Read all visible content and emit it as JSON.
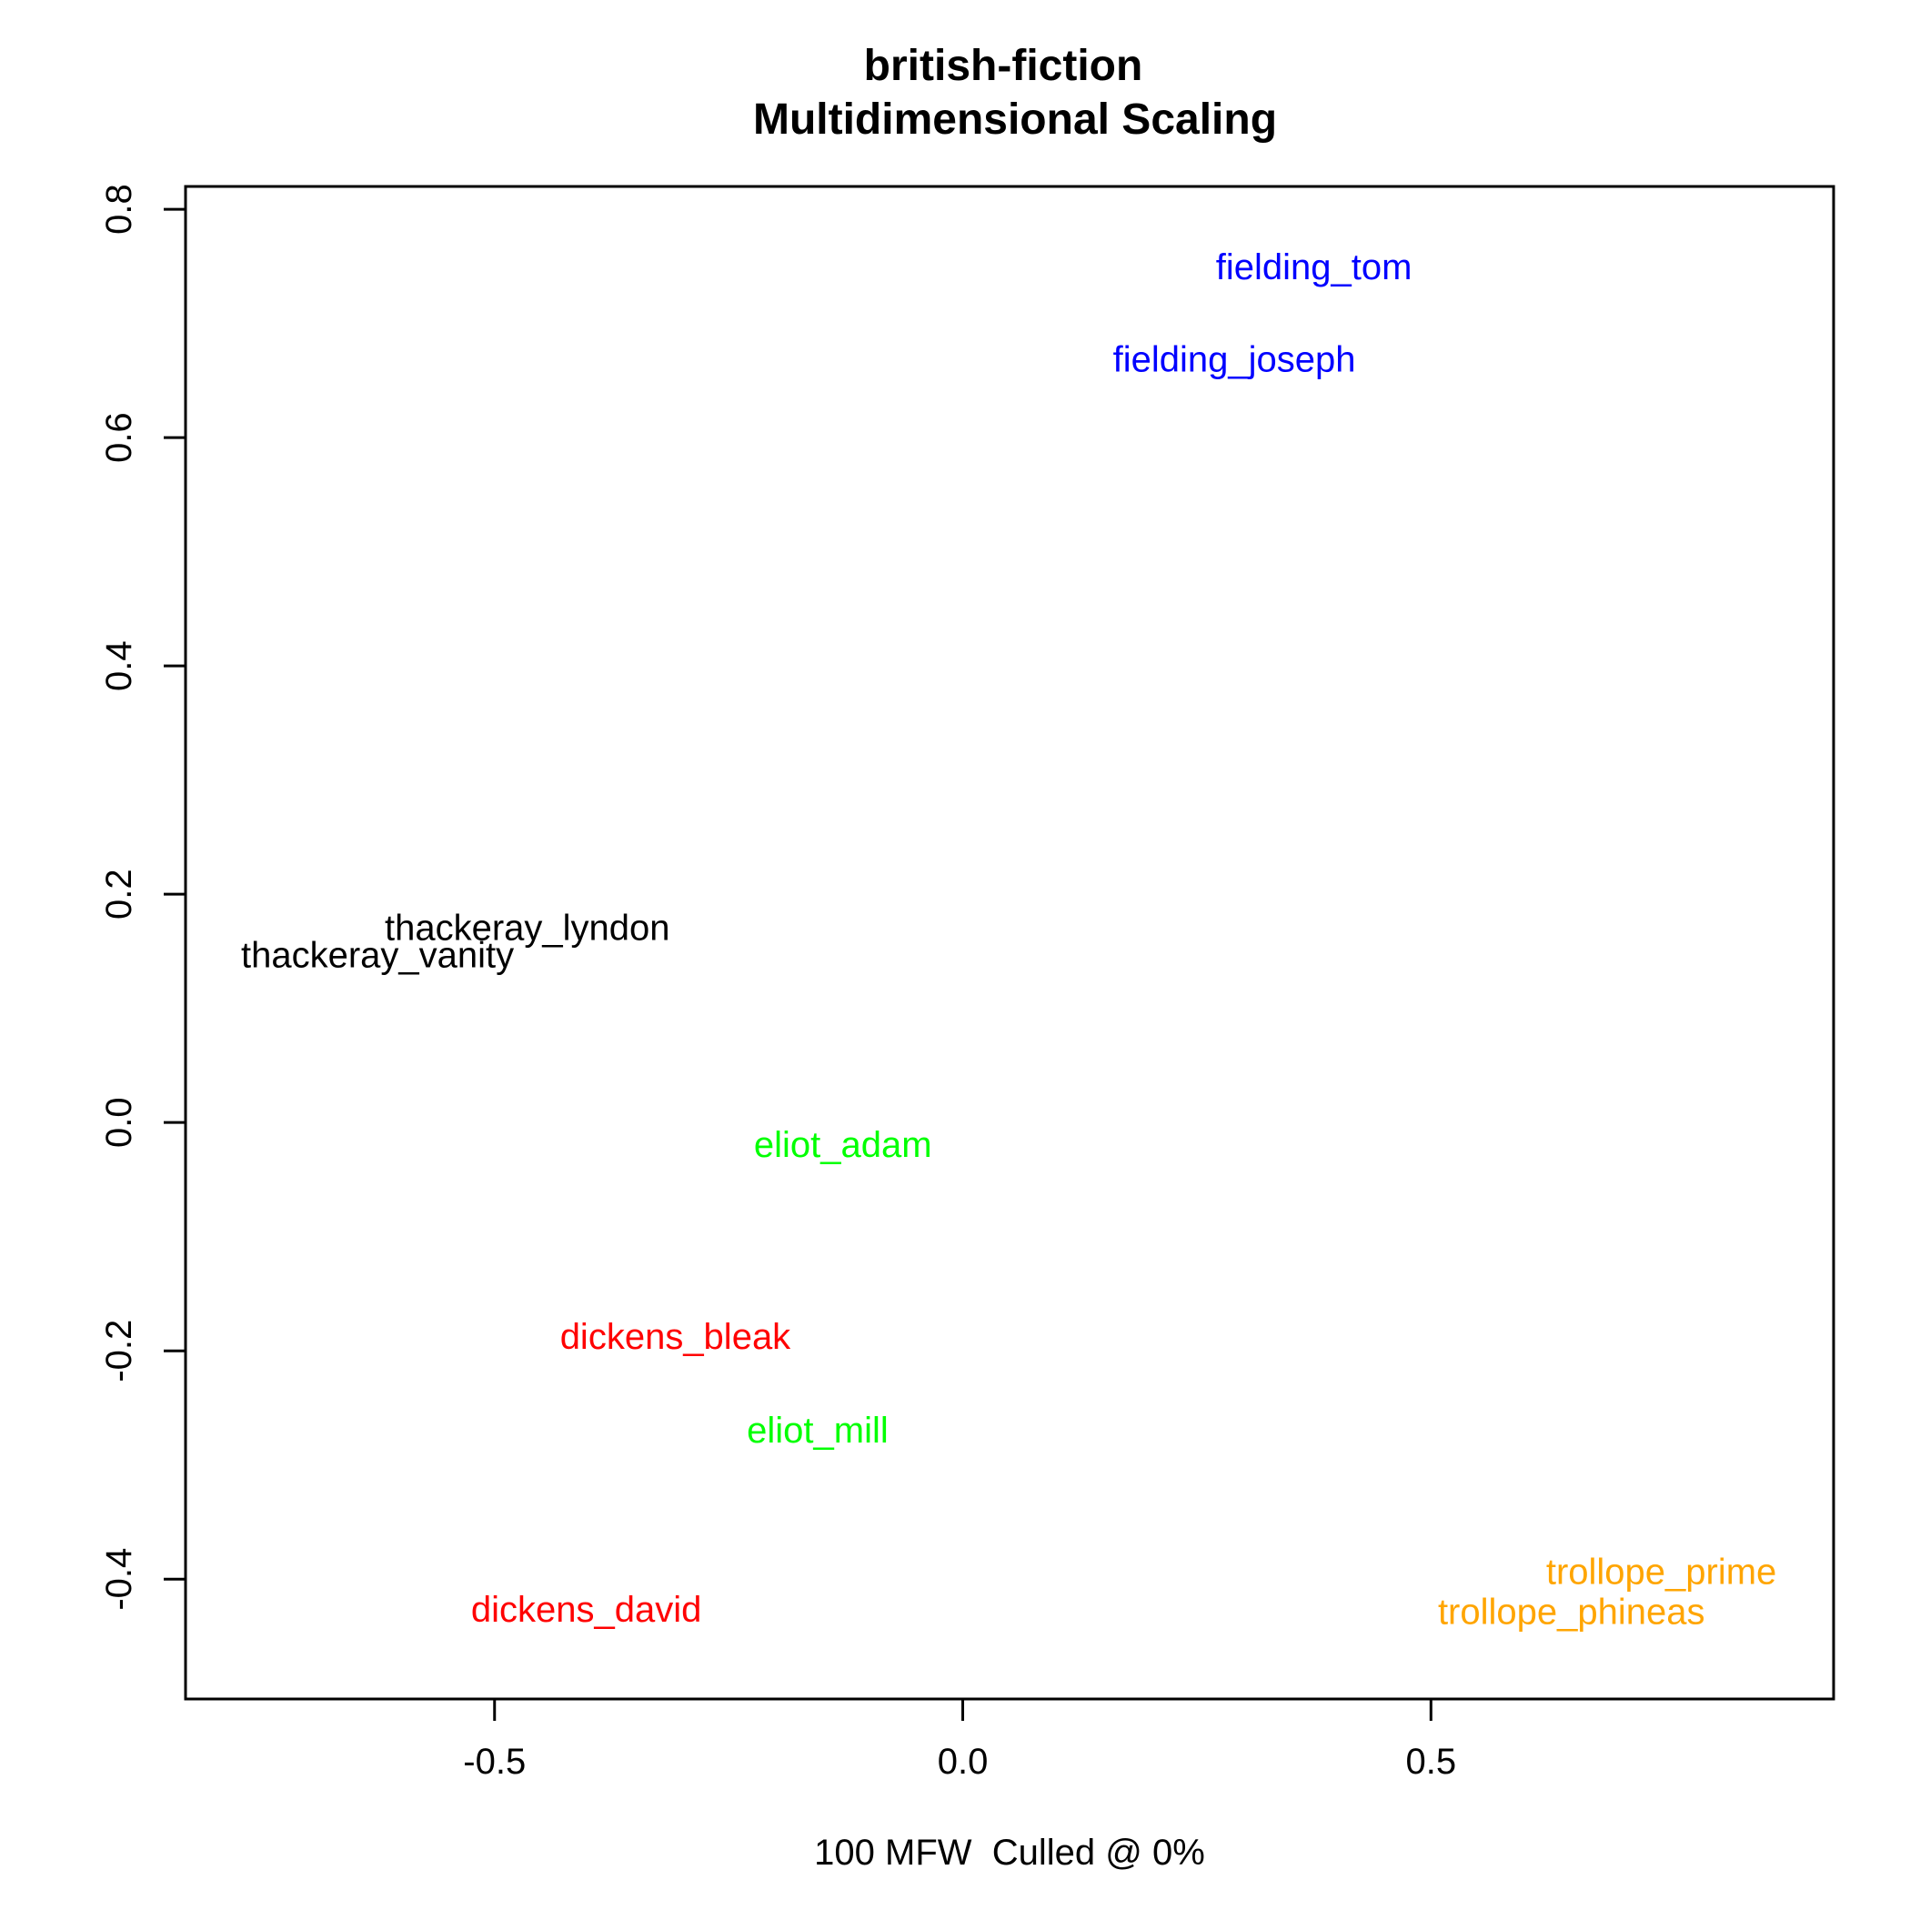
{
  "chart_data": {
    "type": "scatter",
    "title": "british-fiction",
    "subtitle": "Multidimensional Scaling",
    "xlabel": "100 MFW  Culled @ 0%",
    "ylabel": "",
    "xlim": [
      -0.83,
      0.93
    ],
    "ylim": [
      -0.505,
      0.82
    ],
    "x_ticks": [
      -0.5,
      0.0,
      0.5
    ],
    "x_tick_labels": [
      "-0.5",
      "0.0",
      "0.5"
    ],
    "y_ticks": [
      -0.4,
      -0.2,
      0.0,
      0.2,
      0.4,
      0.6,
      0.8
    ],
    "y_tick_labels": [
      "-0.4",
      "-0.2",
      "0.0",
      "0.2",
      "0.4",
      "0.6",
      "0.8"
    ],
    "grid": false,
    "points": [
      {
        "label": "fielding_tom",
        "x": 0.375,
        "y": 0.75,
        "color": "#0000ff"
      },
      {
        "label": "fielding_joseph",
        "x": 0.29,
        "y": 0.669,
        "color": "#0000ff"
      },
      {
        "label": "thackeray_lyndon",
        "x": -0.465,
        "y": 0.171,
        "color": "#000000"
      },
      {
        "label": "thackeray_vanity",
        "x": -0.625,
        "y": 0.147,
        "color": "#000000"
      },
      {
        "label": "eliot_adam",
        "x": -0.128,
        "y": -0.019,
        "color": "#00ff00"
      },
      {
        "label": "eliot_mill",
        "x": -0.155,
        "y": -0.269,
        "color": "#00ff00"
      },
      {
        "label": "dickens_bleak",
        "x": -0.307,
        "y": -0.187,
        "color": "#ff0000"
      },
      {
        "label": "dickens_david",
        "x": -0.402,
        "y": -0.426,
        "color": "#ff0000"
      },
      {
        "label": "trollope_prime",
        "x": 0.746,
        "y": -0.393,
        "color": "#ffa500"
      },
      {
        "label": "trollope_phineas",
        "x": 0.65,
        "y": -0.428,
        "color": "#ffa500"
      }
    ]
  }
}
